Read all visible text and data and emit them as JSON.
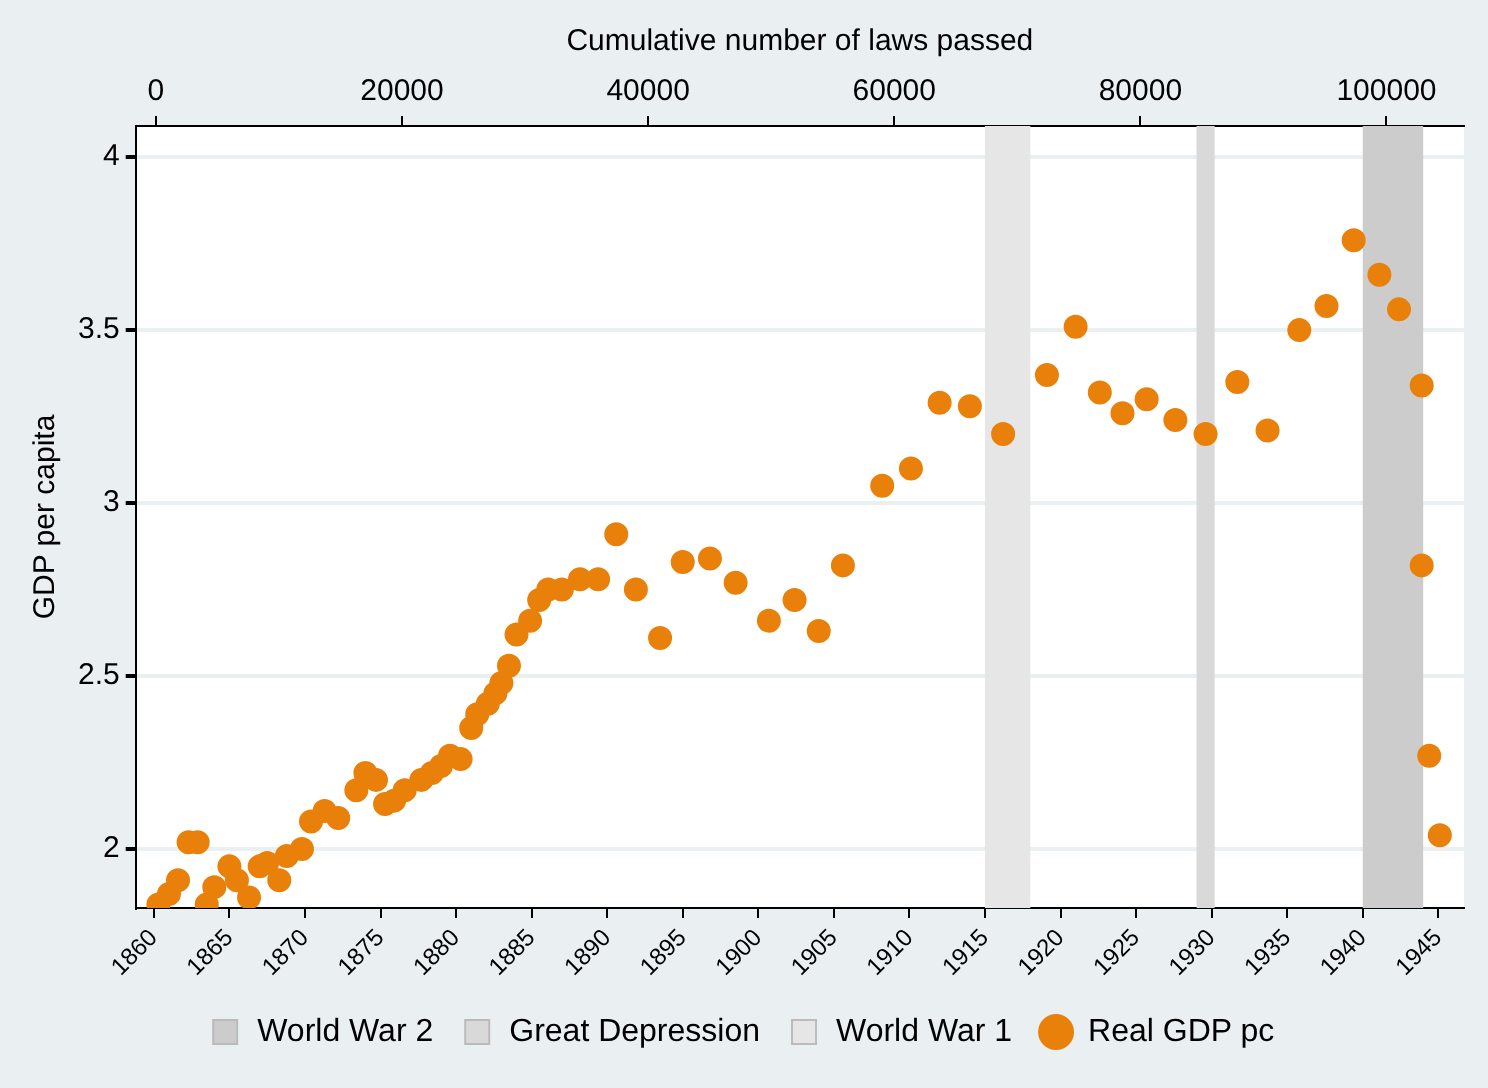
{
  "chart_data": {
    "type": "scatter",
    "x2label": "Cumulative number of laws passed",
    "ylabel": "GDP per capita",
    "xlim": [
      1858.8,
      1946.7
    ],
    "xticks": [
      1860,
      1865,
      1870,
      1875,
      1880,
      1885,
      1890,
      1895,
      1900,
      1905,
      1910,
      1915,
      1920,
      1925,
      1930,
      1935,
      1940,
      1945
    ],
    "x2lim": [
      -1640,
      106300
    ],
    "x2ticks": [
      0,
      20000,
      40000,
      60000,
      80000,
      100000
    ],
    "ylim": [
      1.83,
      4.09
    ],
    "yticks": [
      2,
      2.5,
      3,
      3.5,
      4
    ],
    "grid": "y",
    "legend": "bottom",
    "marker": "circle",
    "bands": [
      {
        "axis": "x",
        "from": 1940,
        "to": 1944,
        "label": "World War 2",
        "color": "#cccccc"
      },
      {
        "axis": "x",
        "from": 1929,
        "to": 1930.2,
        "label": "Great Depression",
        "color": "#d9d9d9"
      },
      {
        "axis": "x",
        "from": 1915,
        "to": 1918,
        "label": "World War 1",
        "color": "#e6e6e6"
      }
    ],
    "series": [
      {
        "name": "Real GDP pc",
        "color": "#e8800a",
        "x": [
          1860.3,
          1861,
          1861.6,
          1862.3,
          1862.9,
          1863.5,
          1864,
          1865,
          1865.5,
          1866.3,
          1867,
          1867.5,
          1868.3,
          1868.8,
          1869.8,
          1870.4,
          1871.3,
          1872.2,
          1873.4,
          1874,
          1874.7,
          1875.3,
          1875.9,
          1876.6,
          1877.7,
          1878.4,
          1879,
          1879.6,
          1880.3,
          1881,
          1881.4,
          1882.1,
          1882.6,
          1883,
          1883.5,
          1884,
          1884.9,
          1885.5,
          1886.1,
          1887,
          1888.2,
          1889.4,
          1890.6,
          1891.9,
          1893.5,
          1895,
          1896.8,
          1898.5,
          1900.7,
          1902.4,
          1904,
          1905.6,
          1908.2,
          1910.1,
          1912,
          1914,
          1916.2,
          1919.1,
          1921,
          1922.6,
          1924.1,
          1925.7,
          1927.6,
          1929.6,
          1931.7,
          1933.7,
          1935.8,
          1937.6,
          1939.4,
          1941.1,
          1942.4,
          1943.9,
          1943.9,
          1944.4,
          1945.1
        ],
        "values": [
          1.84,
          1.87,
          1.91,
          2.02,
          2.02,
          1.84,
          1.89,
          1.95,
          1.91,
          1.86,
          1.95,
          1.96,
          1.91,
          1.98,
          2.0,
          2.08,
          2.11,
          2.09,
          2.17,
          2.22,
          2.2,
          2.13,
          2.14,
          2.17,
          2.2,
          2.22,
          2.24,
          2.27,
          2.26,
          2.35,
          2.39,
          2.42,
          2.45,
          2.48,
          2.53,
          2.62,
          2.66,
          2.72,
          2.75,
          2.75,
          2.78,
          2.78,
          2.91,
          2.75,
          2.61,
          2.83,
          2.84,
          2.77,
          2.66,
          2.72,
          2.63,
          2.82,
          3.05,
          3.1,
          3.29,
          3.28,
          3.2,
          3.37,
          3.51,
          3.32,
          3.26,
          3.3,
          3.24,
          3.2,
          3.35,
          3.21,
          3.5,
          3.57,
          3.76,
          3.66,
          3.56,
          3.34,
          2.82,
          2.27,
          2.04
        ]
      }
    ]
  }
}
